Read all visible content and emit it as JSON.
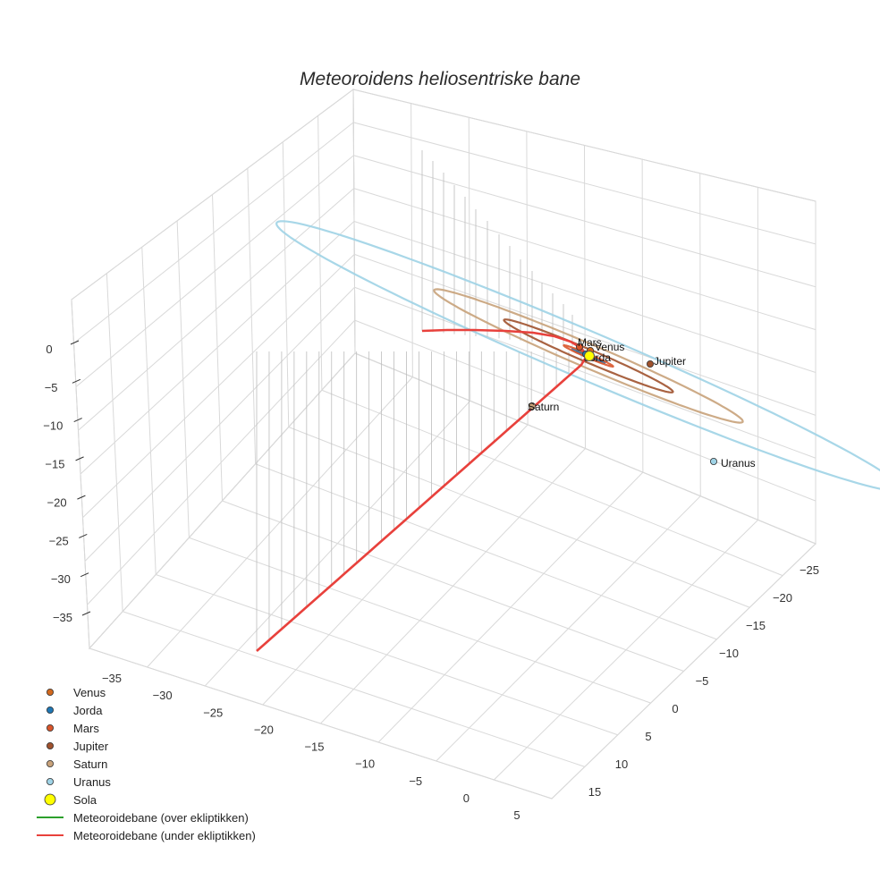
{
  "chart_data": {
    "type": "3d-line-scatter",
    "title": "Meteoroidens heliosentriske bane",
    "axes": {
      "x": {
        "ticks": [
          "−35",
          "−30",
          "−25",
          "−20",
          "−15",
          "−10",
          "−5",
          "0",
          "5"
        ]
      },
      "y": {
        "ticks": [
          "−25",
          "−20",
          "−15",
          "−10",
          "−5",
          "0",
          "5",
          "10",
          "15"
        ]
      },
      "z": {
        "ticks": [
          "0",
          "−5",
          "−10",
          "−15",
          "−20",
          "−25",
          "−30",
          "−35"
        ]
      },
      "grid": true
    },
    "orbits": [
      {
        "name": "Venus",
        "radius_au": 0.72,
        "color": "#d2691e"
      },
      {
        "name": "Jorda",
        "radius_au": 1.0,
        "color": "#1f77b4"
      },
      {
        "name": "Mars",
        "radius_au": 1.52,
        "color": "#d9552b"
      },
      {
        "name": "Jupiter",
        "radius_au": 5.2,
        "color": "#a0522d"
      },
      {
        "name": "Saturn",
        "radius_au": 9.5,
        "color": "#c8a27a"
      },
      {
        "name": "Uranus",
        "radius_au": 19.2,
        "color": "#9fd3e6"
      }
    ],
    "planets": [
      {
        "name": "Venus",
        "label": "Venus",
        "color": "#d2691e"
      },
      {
        "name": "Jorda",
        "label": "Jorda",
        "color": "#1f77b4"
      },
      {
        "name": "Mars",
        "label": "Mars",
        "color": "#d9552b"
      },
      {
        "name": "Jupiter",
        "label": "Jupiter",
        "color": "#a0522d"
      },
      {
        "name": "Saturn",
        "label": "Saturn",
        "color": "#c8a27a"
      },
      {
        "name": "Uranus",
        "label": "Uranus",
        "color": "#9fd3e6"
      }
    ],
    "sun": {
      "name": "Sola",
      "color": "#ffff00"
    },
    "trajectory": {
      "above_label": "Meteoroidebane (over ekliptikken)",
      "below_label": "Meteoroidebane (under ekliptikken)",
      "above_color": "#2ca02c",
      "below_color": "#e8413c"
    },
    "legend": {
      "position": "bottom-left",
      "entries": [
        {
          "label": "Venus",
          "kind": "marker",
          "color": "#d2691e"
        },
        {
          "label": "Jorda",
          "kind": "marker",
          "color": "#1f77b4"
        },
        {
          "label": "Mars",
          "kind": "marker",
          "color": "#d9552b"
        },
        {
          "label": "Jupiter",
          "kind": "marker",
          "color": "#a0522d"
        },
        {
          "label": "Saturn",
          "kind": "marker",
          "color": "#c8a27a"
        },
        {
          "label": "Uranus",
          "kind": "marker",
          "color": "#9fd3e6"
        },
        {
          "label": "Sola",
          "kind": "big-marker",
          "color": "#ffff00"
        },
        {
          "label": "Meteoroidebane (over ekliptikken)",
          "kind": "line",
          "color": "#2ca02c"
        },
        {
          "label": "Meteoroidebane (under ekliptikken)",
          "kind": "line",
          "color": "#e8413c"
        }
      ]
    }
  }
}
